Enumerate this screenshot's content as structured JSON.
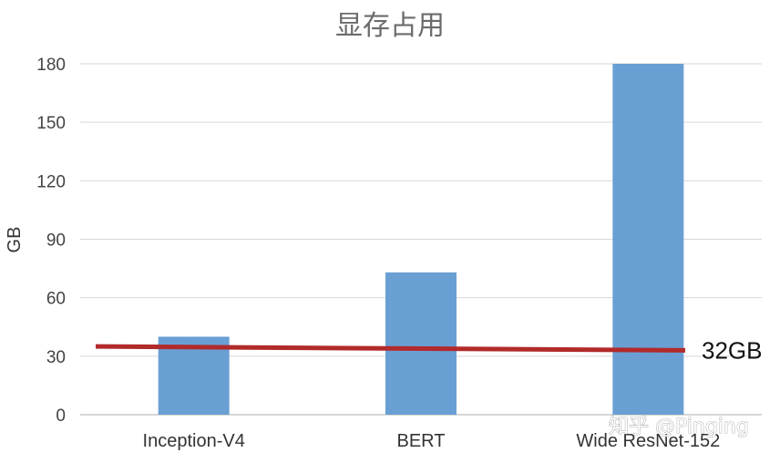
{
  "chart_data": {
    "type": "bar",
    "title": "显存占用",
    "ylabel": "GB",
    "xlabel": "",
    "categories": [
      "Inception-V4",
      "BERT",
      "Wide ResNet-152"
    ],
    "values": [
      40,
      73,
      180
    ],
    "ylim": [
      0,
      180
    ],
    "yticks": [
      0,
      30,
      60,
      90,
      120,
      150,
      180
    ],
    "grid": true,
    "bar_color": "#6a9fd4",
    "reference_line": {
      "value": 32,
      "label": "32GB",
      "color": "#b22a2a"
    }
  },
  "watermark": "知乎 @Pinging"
}
